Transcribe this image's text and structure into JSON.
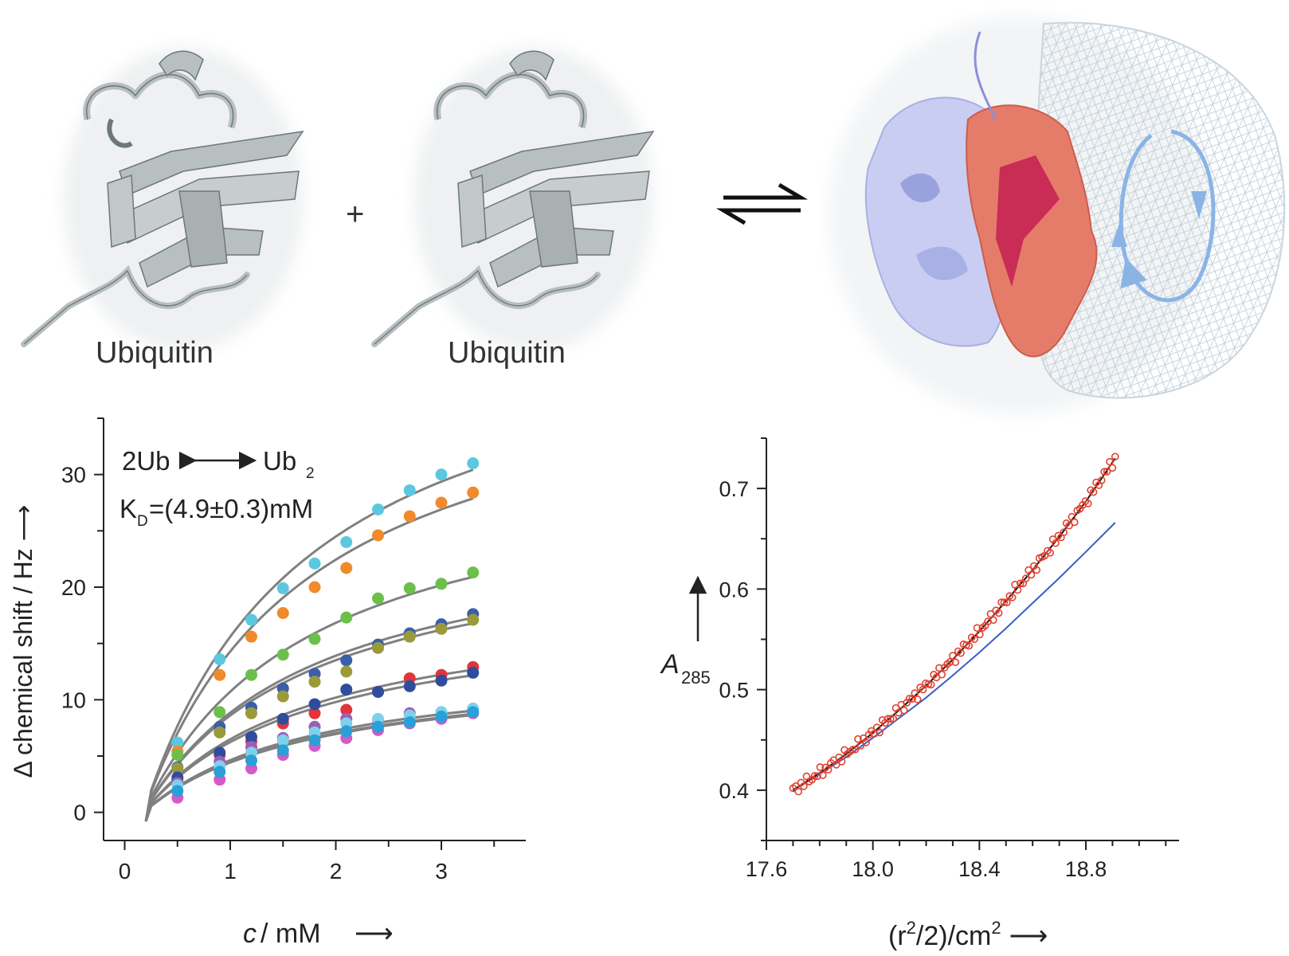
{
  "scheme": {
    "left_protein_label": "Ubiquitin",
    "right_protein_label": "Ubiquitin",
    "plus_sign": "+",
    "colors": {
      "ribbon": "#b8bfc0",
      "ribbon_edge": "#6e7778",
      "halo": "#eef0f1",
      "subunit_a": "#c9cdf2",
      "subunit_b": "#e57c6a",
      "subunit_b_dark": "#c2184f",
      "mesh": "#bfcdd6",
      "rotation_arrow": "#8ab4e6"
    }
  },
  "chart_data": [
    {
      "type": "scatter",
      "subtype": "binding isotherms with fitted curves",
      "annotation_reaction": {
        "left": "2Ub",
        "right": "Ub",
        "right_subscript": "2"
      },
      "annotation_kd": {
        "prefix": "K",
        "subscript": "D",
        "value": "=(4.9±0.3)mM"
      },
      "xlabel": {
        "var": "c",
        "unit": "/ mM",
        "arrow": "⟶"
      },
      "ylabel": "Δ chemical shift / Hz ⟶",
      "xlim": [
        -0.2,
        3.8
      ],
      "ylim": [
        -2.5,
        35
      ],
      "xticks": [
        "0",
        "1",
        "2",
        "3"
      ],
      "xtick_values": [
        0,
        1,
        2,
        3
      ],
      "yticks": [
        "0",
        "10",
        "20",
        "30"
      ],
      "ytick_values": [
        0,
        10,
        20,
        30
      ],
      "grid": false,
      "fit_color": "#808080",
      "x": [
        0.2,
        0.5,
        0.9,
        1.2,
        1.5,
        1.8,
        2.1,
        2.4,
        2.7,
        3.0,
        3.3
      ],
      "series": [
        {
          "color": "#5bc8e0",
          "values": [
            0,
            6.2,
            13.6,
            17.1,
            19.9,
            22.1,
            24.0,
            26.9,
            28.6,
            30.0,
            31.0
          ]
        },
        {
          "color": "#f08a2c",
          "values": [
            0,
            5.4,
            12.2,
            15.6,
            17.7,
            20.0,
            21.7,
            24.6,
            26.3,
            27.5,
            28.4
          ]
        },
        {
          "color": "#6cc04a",
          "values": [
            0,
            5.1,
            8.9,
            12.2,
            14.0,
            15.4,
            17.3,
            19.0,
            19.9,
            20.3,
            21.3
          ]
        },
        {
          "color": "#3a5faa",
          "values": [
            0,
            4.0,
            7.6,
            9.3,
            11.0,
            12.3,
            13.5,
            14.9,
            15.9,
            16.7,
            17.6
          ]
        },
        {
          "color": "#9a9a3a",
          "values": [
            0,
            3.9,
            7.1,
            8.8,
            10.3,
            11.6,
            12.5,
            14.6,
            15.6,
            16.3,
            17.1
          ]
        },
        {
          "color": "#e0353a",
          "values": [
            0,
            2.9,
            5.1,
            6.3,
            7.9,
            8.8,
            9.1,
            10.7,
            11.9,
            12.2,
            12.9
          ]
        },
        {
          "color": "#2f4d9c",
          "values": [
            0,
            3.1,
            5.3,
            6.7,
            8.3,
            9.6,
            10.9,
            10.7,
            11.2,
            11.7,
            12.4
          ]
        },
        {
          "color": "#9b5fb8",
          "values": [
            0,
            2.6,
            4.5,
            5.8,
            6.6,
            7.6,
            8.3,
            8.2,
            8.8,
            8.9,
            9.2
          ]
        },
        {
          "color": "#7fd1ea",
          "values": [
            0,
            2.4,
            4.1,
            5.3,
            6.4,
            7.1,
            7.9,
            8.3,
            8.6,
            8.9,
            9.2
          ]
        },
        {
          "color": "#d45ac8",
          "values": [
            0,
            1.3,
            2.9,
            3.9,
            5.1,
            5.9,
            6.6,
            7.3,
            7.9,
            8.3,
            8.8
          ]
        },
        {
          "color": "#29a0d8",
          "values": [
            0,
            1.9,
            3.6,
            4.6,
            5.5,
            6.4,
            7.2,
            7.6,
            8.0,
            8.5,
            8.9
          ]
        }
      ]
    },
    {
      "type": "scatter",
      "subtype": "sedimentation profile with two model curves",
      "xlabel": {
        "main": "(r",
        "sup": "2",
        "rest": "/2)/cm",
        "sup2": "2",
        "arrow": "⟶"
      },
      "ylabel": {
        "main": "A",
        "sub": "285",
        "arrow": "↑"
      },
      "xlim": [
        17.6,
        19.15
      ],
      "ylim": [
        0.35,
        0.75
      ],
      "xticks": [
        "17.6",
        "18.0",
        "18.4",
        "18.8"
      ],
      "xtick_values": [
        17.6,
        18.0,
        18.4,
        18.8
      ],
      "yticks": [
        "0.4",
        "0.5",
        "0.6",
        "0.7"
      ],
      "ytick_values": [
        0.4,
        0.5,
        0.6,
        0.7
      ],
      "grid": false,
      "point_color": "#e04030",
      "fit_color": "#111111",
      "ideal_color": "#3a5cc8",
      "point_x_range": [
        17.7,
        18.91
      ],
      "points_count": 120,
      "fit_curve": {
        "x": [
          17.7,
          17.8,
          17.9,
          18.0,
          18.1,
          18.2,
          18.3,
          18.4,
          18.5,
          18.6,
          18.7,
          18.8,
          18.91
        ],
        "y": [
          0.4,
          0.417,
          0.436,
          0.457,
          0.48,
          0.504,
          0.53,
          0.558,
          0.588,
          0.619,
          0.652,
          0.687,
          0.73
        ]
      },
      "ideal_curve": {
        "x": [
          17.7,
          17.8,
          17.9,
          18.0,
          18.1,
          18.2,
          18.3,
          18.4,
          18.5,
          18.6,
          18.7,
          18.8,
          18.91
        ],
        "y": [
          0.4,
          0.416,
          0.433,
          0.452,
          0.472,
          0.492,
          0.514,
          0.537,
          0.561,
          0.586,
          0.611,
          0.637,
          0.666
        ]
      }
    }
  ]
}
